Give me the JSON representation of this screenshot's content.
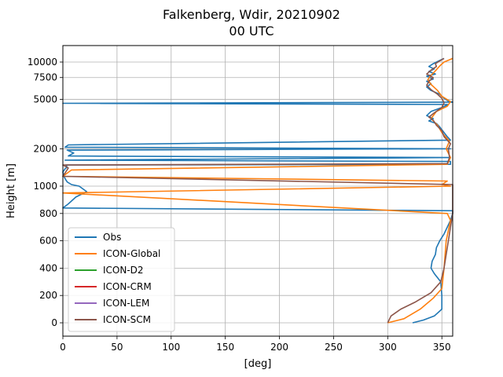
{
  "chart_data": {
    "type": "line",
    "title": "Falkenberg, Wdir, 20210902",
    "subtitle": "00 UTC",
    "xlabel": "[deg]",
    "ylabel": "Height [m]",
    "xlim": [
      0,
      360
    ],
    "x_ticks": [
      0,
      50,
      100,
      150,
      200,
      250,
      300,
      350
    ],
    "x_tick_labels": [
      "0",
      "50",
      "100",
      "150",
      "200",
      "250",
      "300",
      "350"
    ],
    "y_scale": "piecewise: linear 0-1000 m, log 1000-10000 m",
    "y_ticks": [
      0,
      200,
      400,
      600,
      800,
      1000,
      2000,
      5000,
      7500,
      10000
    ],
    "y_tick_labels": [
      "0",
      "200",
      "400",
      "600",
      "800",
      "1000",
      "2000",
      "5000",
      "7500",
      "10000"
    ],
    "grid": true,
    "legend_position": "bottom-left",
    "series": [
      {
        "name": "Obs",
        "color": "#1f77b4",
        "points": [
          [
            323,
            0
          ],
          [
            333,
            20
          ],
          [
            343,
            50
          ],
          [
            350,
            100
          ],
          [
            350,
            200
          ],
          [
            349,
            300
          ],
          [
            343,
            360
          ],
          [
            340,
            400
          ],
          [
            341,
            450
          ],
          [
            344,
            500
          ],
          [
            345,
            550
          ],
          [
            348,
            600
          ],
          [
            352,
            650
          ],
          [
            355,
            700
          ],
          [
            358,
            750
          ],
          [
            360,
            800
          ],
          [
            360,
            820
          ],
          [
            0,
            840
          ],
          [
            5,
            870
          ],
          [
            12,
            920
          ],
          [
            22,
            960
          ],
          [
            15,
            1000
          ],
          [
            8,
            1030
          ],
          [
            4,
            1080
          ],
          [
            2,
            1150
          ],
          [
            1,
            1200
          ],
          [
            0,
            1300
          ],
          [
            2,
            1380
          ],
          [
            4,
            1420
          ],
          [
            3,
            1480
          ],
          [
            358,
            1500
          ],
          [
            358,
            1580
          ],
          [
            2,
            1620
          ],
          [
            356,
            1700
          ],
          [
            5,
            1750
          ],
          [
            10,
            1850
          ],
          [
            4,
            1950
          ],
          [
            358,
            2000
          ],
          [
            2,
            2060
          ],
          [
            5,
            2150
          ],
          [
            358,
            2350
          ],
          [
            355,
            2500
          ],
          [
            352,
            2700
          ],
          [
            348,
            3000
          ],
          [
            345,
            3200
          ],
          [
            338,
            3350
          ],
          [
            342,
            3500
          ],
          [
            336,
            3700
          ],
          [
            340,
            4000
          ],
          [
            350,
            4300
          ],
          [
            356,
            4550
          ],
          [
            0,
            4650
          ],
          [
            360,
            4750
          ],
          [
            356,
            4850
          ],
          [
            352,
            5100
          ],
          [
            348,
            5500
          ],
          [
            340,
            5900
          ],
          [
            336,
            6300
          ],
          [
            340,
            6700
          ],
          [
            336,
            7000
          ],
          [
            342,
            7300
          ],
          [
            336,
            7700
          ],
          [
            344,
            8000
          ],
          [
            338,
            8400
          ],
          [
            343,
            8800
          ],
          [
            338,
            9200
          ],
          [
            342,
            9700
          ],
          [
            348,
            10300
          ],
          [
            352,
            10700
          ]
        ]
      },
      {
        "name": "ICON-Global",
        "color": "#ff7f0e",
        "points": [
          [
            300,
            0
          ],
          [
            315,
            30
          ],
          [
            330,
            100
          ],
          [
            342,
            180
          ],
          [
            350,
            250
          ],
          [
            352,
            400
          ],
          [
            354,
            600
          ],
          [
            358,
            750
          ],
          [
            355,
            800
          ],
          [
            0,
            950
          ],
          [
            358,
            1000
          ],
          [
            350,
            1030
          ],
          [
            355,
            1100
          ],
          [
            0,
            1200
          ],
          [
            8,
            1350
          ],
          [
            355,
            1500
          ],
          [
            358,
            1700
          ],
          [
            354,
            2000
          ],
          [
            357,
            2300
          ],
          [
            350,
            2700
          ],
          [
            346,
            3100
          ],
          [
            340,
            3500
          ],
          [
            345,
            4000
          ],
          [
            355,
            4400
          ],
          [
            358,
            4800
          ],
          [
            350,
            5300
          ],
          [
            346,
            5900
          ],
          [
            340,
            6600
          ],
          [
            337,
            7200
          ],
          [
            340,
            7800
          ],
          [
            344,
            8500
          ],
          [
            348,
            9300
          ],
          [
            352,
            10000
          ],
          [
            360,
            10700
          ]
        ]
      },
      {
        "name": "ICON-D2",
        "color": "#2ca02c",
        "points": []
      },
      {
        "name": "ICON-CRM",
        "color": "#d62728",
        "points": []
      },
      {
        "name": "ICON-LEM",
        "color": "#9467bd",
        "points": []
      },
      {
        "name": "ICON-SCM",
        "color": "#8c564b",
        "points": [
          [
            300,
            0
          ],
          [
            303,
            50
          ],
          [
            312,
            100
          ],
          [
            325,
            150
          ],
          [
            340,
            220
          ],
          [
            349,
            300
          ],
          [
            352,
            400
          ],
          [
            354,
            500
          ],
          [
            356,
            600
          ],
          [
            358,
            700
          ],
          [
            360,
            800
          ],
          [
            360,
            900
          ],
          [
            360,
            1000
          ],
          [
            360,
            1030
          ],
          [
            0,
            1200
          ],
          [
            5,
            1400
          ],
          [
            0,
            1480
          ],
          [
            355,
            1520
          ],
          [
            357,
            1700
          ],
          [
            356,
            2000
          ],
          [
            358,
            2200
          ],
          [
            352,
            2500
          ],
          [
            350,
            2800
          ],
          [
            345,
            3100
          ],
          [
            342,
            3400
          ],
          [
            338,
            3600
          ],
          [
            343,
            3900
          ],
          [
            350,
            4300
          ],
          [
            352,
            4700
          ],
          [
            350,
            5100
          ],
          [
            346,
            5500
          ],
          [
            340,
            6000
          ],
          [
            336,
            6500
          ],
          [
            338,
            7000
          ],
          [
            342,
            7500
          ],
          [
            336,
            8000
          ],
          [
            340,
            8600
          ],
          [
            345,
            9200
          ],
          [
            344,
            9700
          ],
          [
            348,
            10200
          ],
          [
            352,
            10700
          ]
        ]
      }
    ]
  }
}
